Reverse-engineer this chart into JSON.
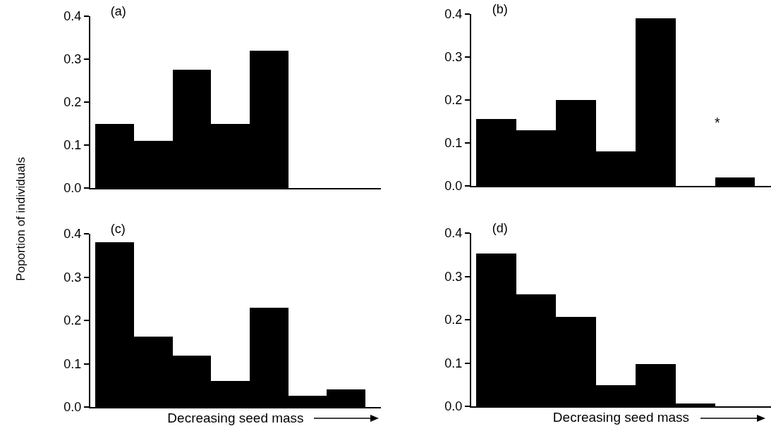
{
  "chart_data": [
    {
      "type": "bar",
      "title": "(a)",
      "ylabel": "Poportion of individuals",
      "categories": [
        null,
        null,
        null,
        null,
        null,
        null,
        null
      ],
      "values": [
        0.15,
        0.11,
        0.275,
        0.15,
        0.32,
        0,
        0
      ],
      "color": "#000000",
      "ylim": [
        0,
        0.4
      ],
      "yticks": [
        "0.0",
        0.1,
        0.2,
        0.3,
        0.4
      ],
      "tick_labels": "y",
      "grid": false
    },
    {
      "type": "bar",
      "title": "(b)",
      "categories": [
        null,
        null,
        null,
        null,
        null,
        null,
        null
      ],
      "values": [
        0.155,
        0.13,
        0.2,
        0.08,
        0.39,
        0,
        0.02
      ],
      "color": "#000000",
      "ylim": [
        0,
        0.4
      ],
      "yticks": [
        "0.0",
        0.1,
        0.2,
        0.3,
        0.4
      ],
      "tick_labels": "y",
      "grid": false,
      "annotations": [
        "*"
      ]
    },
    {
      "type": "bar",
      "title": "(c)",
      "xlabel": "Decreasing seed mass",
      "categories": [
        null,
        null,
        null,
        null,
        null,
        null,
        null
      ],
      "values": [
        0.38,
        0.163,
        0.118,
        0.06,
        0.23,
        0.026,
        0.04
      ],
      "color": "#000000",
      "ylim": [
        0,
        0.4
      ],
      "yticks": [
        "0.0",
        0.1,
        0.2,
        0.3,
        0.4
      ],
      "tick_labels": "y",
      "grid": false
    },
    {
      "type": "bar",
      "title": "(d)",
      "xlabel": "Decreasing seed mass",
      "categories": [
        null,
        null,
        null,
        null,
        null,
        null,
        null
      ],
      "values": [
        0.353,
        0.258,
        0.206,
        0.048,
        0.098,
        0.007,
        0
      ],
      "color": "#000000",
      "ylim": [
        0,
        0.4
      ],
      "yticks": [
        "0.0",
        0.1,
        0.2,
        0.3,
        0.4
      ],
      "tick_labels": "y",
      "grid": false
    }
  ]
}
